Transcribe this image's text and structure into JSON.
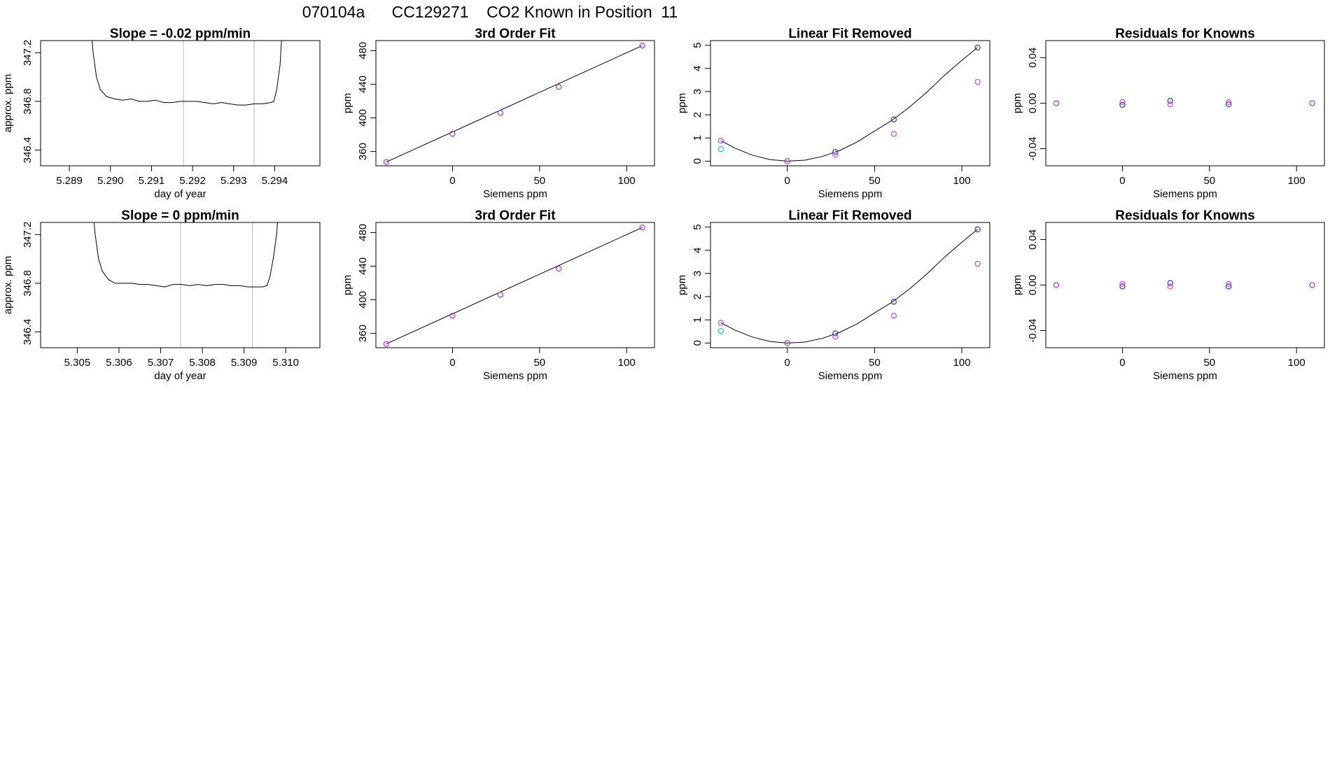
{
  "figure": {
    "title": "070104a      CC129271    CO2 Known in Position  11"
  },
  "colors": {
    "trace": "#000000",
    "marker_blue": "#2020dd",
    "marker_purple": "#c040e0",
    "marker_cyan": "#10b8d0",
    "frame": "#000000",
    "window_line": "#bbbbbb"
  },
  "chart_data": [
    {
      "type": "line",
      "title": "Slope =  -0.02  ppm/min",
      "xlabel": "day of year",
      "ylabel": "approx. ppm",
      "xlim": [
        5.2883,
        5.2951
      ],
      "ylim": [
        346.27,
        347.3
      ],
      "xticks": [
        5.289,
        5.29,
        5.291,
        5.292,
        5.293,
        5.294
      ],
      "xtick_labels": [
        "5.289",
        "5.290",
        "5.291",
        "5.292",
        "5.293",
        "5.294"
      ],
      "yticks": [
        346.4,
        346.8,
        347.2
      ],
      "ytick_labels": [
        "346.4",
        "346.8",
        "347.2"
      ],
      "window": [
        5.29178,
        5.2935
      ],
      "x": [
        5.2895,
        5.28958,
        5.28966,
        5.28975,
        5.2899,
        5.2901,
        5.2903,
        5.2905,
        5.2907,
        5.2909,
        5.2911,
        5.2913,
        5.2915,
        5.2917,
        5.2919,
        5.2921,
        5.2923,
        5.2925,
        5.2927,
        5.2929,
        5.2931,
        5.2933,
        5.2935,
        5.2937,
        5.2939,
        5.29398,
        5.29405,
        5.29413,
        5.2942
      ],
      "y": [
        347.5,
        347.2,
        347.0,
        346.9,
        346.84,
        346.82,
        346.81,
        346.82,
        346.8,
        346.8,
        346.81,
        346.79,
        346.79,
        346.8,
        346.8,
        346.8,
        346.79,
        346.78,
        346.79,
        346.78,
        346.77,
        346.77,
        346.78,
        346.78,
        346.79,
        346.8,
        346.9,
        347.1,
        347.5
      ]
    },
    {
      "type": "scatter",
      "title": "3rd Order Fit",
      "xlabel": "Siemens ppm",
      "ylabel": "ppm",
      "xlim": [
        -44,
        116
      ],
      "ylim": [
        343,
        492
      ],
      "xticks": [
        0,
        50,
        100
      ],
      "xtick_labels": [
        "0",
        "50",
        "100"
      ],
      "yticks": [
        360,
        400,
        440,
        480
      ],
      "ytick_labels": [
        "360",
        "400",
        "440",
        "480"
      ],
      "series": [
        {
          "color": "blue",
          "x": [
            -38,
            0,
            27.5,
            61,
            109
          ],
          "y": [
            347.5,
            381,
            406,
            437,
            486
          ]
        },
        {
          "color": "purple",
          "x": [
            -38,
            0,
            27.5,
            61,
            109
          ],
          "y": [
            347.5,
            381,
            406,
            437,
            486
          ]
        }
      ],
      "fit_line": {
        "x": [
          -38,
          109
        ],
        "y": [
          347.5,
          486
        ]
      }
    },
    {
      "type": "scatter",
      "title": "Linear Fit Removed",
      "xlabel": "Siemens ppm",
      "ylabel": "ppm",
      "xlim": [
        -44,
        116
      ],
      "ylim": [
        -0.2,
        5.2
      ],
      "xticks": [
        0,
        50,
        100
      ],
      "xtick_labels": [
        "0",
        "50",
        "100"
      ],
      "yticks": [
        0,
        1,
        2,
        3,
        4,
        5
      ],
      "ytick_labels": [
        "0",
        "1",
        "2",
        "3",
        "4",
        "5"
      ],
      "series": [
        {
          "color": "blue",
          "x": [
            0,
            27.5,
            61,
            109
          ],
          "y": [
            0.0,
            0.4,
            1.8,
            4.9
          ]
        },
        {
          "color": "purple",
          "x": [
            -38,
            0,
            27.5,
            61,
            109
          ],
          "y": [
            0.88,
            0.0,
            0.28,
            1.18,
            3.42
          ]
        },
        {
          "color": "cyan",
          "x": [
            -38
          ],
          "y": [
            0.52
          ]
        }
      ],
      "fit_curve": {
        "x": [
          -38,
          -30,
          -20,
          -10,
          0,
          10,
          20,
          30,
          40,
          50,
          60,
          70,
          80,
          90,
          100,
          109
        ],
        "y": [
          0.88,
          0.56,
          0.26,
          0.07,
          0.0,
          0.04,
          0.2,
          0.46,
          0.83,
          1.3,
          1.76,
          2.33,
          2.98,
          3.7,
          4.35,
          4.9
        ]
      }
    },
    {
      "type": "scatter",
      "title": "Residuals for Knowns",
      "xlabel": "Siemens ppm",
      "ylabel": "ppm",
      "xlim": [
        -44,
        116
      ],
      "ylim": [
        -0.055,
        0.055
      ],
      "xticks": [
        0,
        50,
        100
      ],
      "xtick_labels": [
        "0",
        "50",
        "100"
      ],
      "yticks": [
        -0.04,
        0.0,
        0.04
      ],
      "ytick_labels": [
        "-0.04",
        "0.00",
        "0.04"
      ],
      "series": [
        {
          "color": "blue",
          "x": [
            -38,
            0,
            27.5,
            61,
            109
          ],
          "y": [
            0.0,
            -0.0015,
            0.002,
            -0.001,
            0.0
          ]
        },
        {
          "color": "purple",
          "x": [
            -38,
            0,
            27.5,
            61,
            109
          ],
          "y": [
            0.0,
            0.001,
            -0.001,
            0.001,
            0.0
          ]
        }
      ]
    },
    {
      "type": "line",
      "title": "Slope =  0  ppm/min",
      "xlabel": "day of year",
      "ylabel": "approx. ppm",
      "xlim": [
        5.30412,
        5.31082
      ],
      "ylim": [
        346.27,
        347.3
      ],
      "xticks": [
        5.305,
        5.306,
        5.307,
        5.308,
        5.309,
        5.31
      ],
      "xtick_labels": [
        "5.305",
        "5.306",
        "5.307",
        "5.308",
        "5.309",
        "5.310"
      ],
      "yticks": [
        346.4,
        346.8,
        347.2
      ],
      "ytick_labels": [
        "346.4",
        "346.8",
        "347.2"
      ],
      "window": [
        5.30748,
        5.3092
      ],
      "x": [
        5.30535,
        5.30543,
        5.30551,
        5.3056,
        5.30575,
        5.3059,
        5.3061,
        5.3063,
        5.3065,
        5.3067,
        5.3069,
        5.3071,
        5.3073,
        5.3075,
        5.3077,
        5.3079,
        5.3081,
        5.3083,
        5.3085,
        5.3087,
        5.3089,
        5.3091,
        5.3093,
        5.30945,
        5.30955,
        5.30962,
        5.3097,
        5.30978,
        5.30985
      ],
      "y": [
        347.5,
        347.2,
        347.0,
        346.9,
        346.83,
        346.8,
        346.8,
        346.8,
        346.79,
        346.79,
        346.78,
        346.77,
        346.79,
        346.79,
        346.78,
        346.79,
        346.78,
        346.79,
        346.79,
        346.78,
        346.78,
        346.77,
        346.77,
        346.77,
        346.78,
        346.85,
        347.0,
        347.2,
        347.5
      ]
    },
    {
      "type": "scatter",
      "title": "3rd Order Fit",
      "xlabel": "Siemens ppm",
      "ylabel": "ppm",
      "xlim": [
        -44,
        116
      ],
      "ylim": [
        343,
        492
      ],
      "xticks": [
        0,
        50,
        100
      ],
      "xtick_labels": [
        "0",
        "50",
        "100"
      ],
      "yticks": [
        360,
        400,
        440,
        480
      ],
      "ytick_labels": [
        "360",
        "400",
        "440",
        "480"
      ],
      "series": [
        {
          "color": "blue",
          "x": [
            -38,
            0,
            27.5,
            61,
            109
          ],
          "y": [
            347.5,
            381,
            406,
            437,
            486
          ]
        },
        {
          "color": "purple",
          "x": [
            -38,
            0,
            27.5,
            61,
            109
          ],
          "y": [
            347.5,
            381,
            406,
            437,
            486
          ]
        }
      ],
      "fit_line": {
        "x": [
          -38,
          109
        ],
        "y": [
          347.5,
          486
        ]
      }
    },
    {
      "type": "scatter",
      "title": "Linear Fit Removed",
      "xlabel": "Siemens ppm",
      "ylabel": "ppm",
      "xlim": [
        -44,
        116
      ],
      "ylim": [
        -0.2,
        5.2
      ],
      "xticks": [
        0,
        50,
        100
      ],
      "xtick_labels": [
        "0",
        "50",
        "100"
      ],
      "yticks": [
        0,
        1,
        2,
        3,
        4,
        5
      ],
      "ytick_labels": [
        "0",
        "1",
        "2",
        "3",
        "4",
        "5"
      ],
      "series": [
        {
          "color": "blue",
          "x": [
            0,
            27.5,
            61,
            109
          ],
          "y": [
            0.0,
            0.42,
            1.78,
            4.9
          ]
        },
        {
          "color": "purple",
          "x": [
            -38,
            0,
            27.5,
            61,
            109
          ],
          "y": [
            0.87,
            0.0,
            0.28,
            1.18,
            3.42
          ]
        },
        {
          "color": "cyan",
          "x": [
            -38
          ],
          "y": [
            0.52
          ]
        }
      ],
      "fit_curve": {
        "x": [
          -38,
          -30,
          -20,
          -10,
          0,
          10,
          20,
          30,
          40,
          50,
          60,
          70,
          80,
          90,
          100,
          109
        ],
        "y": [
          0.87,
          0.56,
          0.26,
          0.07,
          0.0,
          0.04,
          0.2,
          0.46,
          0.83,
          1.3,
          1.76,
          2.33,
          2.98,
          3.7,
          4.35,
          4.9
        ]
      }
    },
    {
      "type": "scatter",
      "title": "Residuals for Knowns",
      "xlabel": "Siemens ppm",
      "ylabel": "ppm",
      "xlim": [
        -44,
        116
      ],
      "ylim": [
        -0.055,
        0.055
      ],
      "xticks": [
        0,
        50,
        100
      ],
      "xtick_labels": [
        "0",
        "50",
        "100"
      ],
      "yticks": [
        -0.04,
        0.0,
        0.04
      ],
      "ytick_labels": [
        "-0.04",
        "0.00",
        "0.04"
      ],
      "series": [
        {
          "color": "blue",
          "x": [
            -38,
            0,
            27.5,
            61,
            109
          ],
          "y": [
            0.0,
            -0.0012,
            0.0018,
            -0.0012,
            0.0
          ]
        },
        {
          "color": "purple",
          "x": [
            -38,
            0,
            27.5,
            61,
            109
          ],
          "y": [
            0.0,
            0.001,
            -0.0012,
            0.001,
            0.0
          ]
        }
      ]
    }
  ]
}
